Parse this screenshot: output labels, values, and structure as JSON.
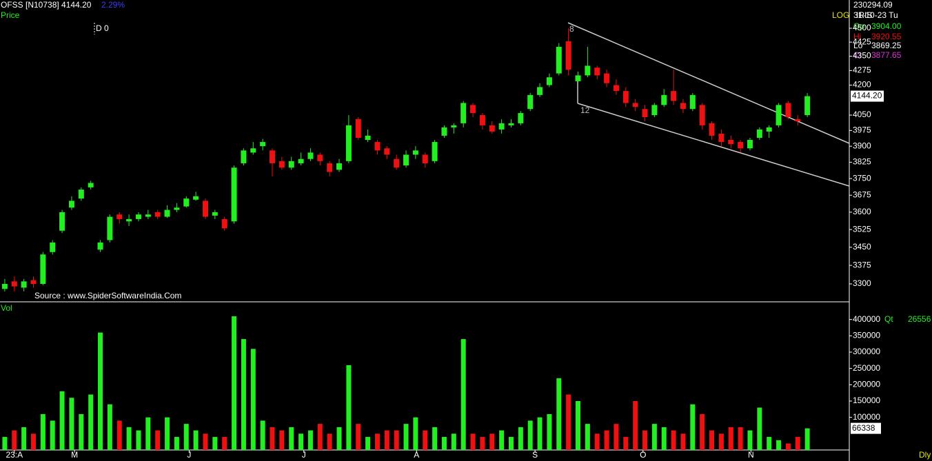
{
  "chart_data": {
    "type": "candlestick",
    "title": "OFSS [N10738] 4144.20",
    "change": "2.29%",
    "price_label": "Price",
    "volume_label": "Vol",
    "annotation": "D 0",
    "source": "Source : www.SpiderSoftwareIndia.Com",
    "scale_label": "LOG",
    "indicator": "IRIS",
    "trend_labels": [
      "8",
      "12"
    ],
    "info": {
      "volume_total": "230294.09",
      "date": "31-10-23 Tu",
      "rows": [
        {
          "label": "Op",
          "value": "3904.00"
        },
        {
          "label": "Hi",
          "value": "3920.55"
        },
        {
          "label": "Lo",
          "value": "3869.25"
        },
        {
          "label": "Cl",
          "value": "3877.65"
        }
      ]
    },
    "quantity_label": "Qt",
    "quantity": 26556,
    "period": "Dly",
    "last_price": {
      "value": 4144.2,
      "label": "4144.20"
    },
    "log_scale": true,
    "up_color": "#22ee22",
    "down_color": "#ee1111",
    "ohlc": [
      [
        3280,
        3320,
        3270,
        3300
      ],
      [
        3310,
        3330,
        3270,
        3290
      ],
      [
        3285,
        3320,
        3270,
        3310
      ],
      [
        3315,
        3330,
        3285,
        3300
      ],
      [
        3300,
        3430,
        3295,
        3420
      ],
      [
        3430,
        3480,
        3420,
        3470
      ],
      [
        3520,
        3610,
        3510,
        3600
      ],
      [
        3620,
        3670,
        3610,
        3650
      ],
      [
        3660,
        3710,
        3650,
        3700
      ],
      [
        3710,
        3740,
        3700,
        3730
      ],
      [
        3440,
        3480,
        3430,
        3470
      ],
      [
        3480,
        3590,
        3470,
        3580
      ],
      [
        3590,
        3600,
        3550,
        3570
      ],
      [
        3560,
        3590,
        3540,
        3570
      ],
      [
        3570,
        3600,
        3560,
        3590
      ],
      [
        3580,
        3610,
        3570,
        3590
      ],
      [
        3600,
        3610,
        3570,
        3580
      ],
      [
        3580,
        3630,
        3575,
        3610
      ],
      [
        3610,
        3640,
        3600,
        3620
      ],
      [
        3625,
        3670,
        3620,
        3660
      ],
      [
        3655,
        3690,
        3650,
        3670
      ],
      [
        3650,
        3660,
        3570,
        3580
      ],
      [
        3585,
        3610,
        3570,
        3600
      ],
      [
        3570,
        3580,
        3520,
        3530
      ],
      [
        3560,
        3810,
        3550,
        3800
      ],
      [
        3820,
        3890,
        3810,
        3880
      ],
      [
        3870,
        3920,
        3860,
        3890
      ],
      [
        3900,
        3935,
        3880,
        3920
      ],
      [
        3880,
        3890,
        3760,
        3820
      ],
      [
        3830,
        3850,
        3790,
        3800
      ],
      [
        3800,
        3850,
        3790,
        3830
      ],
      [
        3820,
        3870,
        3810,
        3840
      ],
      [
        3840,
        3890,
        3830,
        3870
      ],
      [
        3860,
        3870,
        3810,
        3830
      ],
      [
        3820,
        3830,
        3760,
        3780
      ],
      [
        3790,
        3840,
        3780,
        3820
      ],
      [
        3830,
        4050,
        3820,
        4000
      ],
      [
        4030,
        4040,
        3930,
        3940
      ],
      [
        3930,
        3980,
        3920,
        3950
      ],
      [
        3920,
        3930,
        3860,
        3880
      ],
      [
        3890,
        3900,
        3840,
        3860
      ],
      [
        3840,
        3860,
        3790,
        3800
      ],
      [
        3810,
        3880,
        3800,
        3860
      ],
      [
        3860,
        3900,
        3840,
        3880
      ],
      [
        3860,
        3870,
        3800,
        3820
      ],
      [
        3830,
        3930,
        3820,
        3920
      ],
      [
        3950,
        4000,
        3940,
        3990
      ],
      [
        3990,
        4010,
        3960,
        4000
      ],
      [
        4010,
        4120,
        3990,
        4110
      ],
      [
        4100,
        4110,
        4040,
        4060
      ],
      [
        4050,
        4060,
        3980,
        4000
      ],
      [
        4000,
        4020,
        3960,
        3970
      ],
      [
        3980,
        4030,
        3960,
        4010
      ],
      [
        4000,
        4030,
        3990,
        4010
      ],
      [
        4010,
        4070,
        4000,
        4060
      ],
      [
        4080,
        4160,
        4070,
        4150
      ],
      [
        4150,
        4210,
        4140,
        4190
      ],
      [
        4200,
        4260,
        4190,
        4240
      ],
      [
        4260,
        4420,
        4250,
        4400
      ],
      [
        4430,
        4500,
        4250,
        4280
      ],
      [
        4220,
        4270,
        4210,
        4250
      ],
      [
        4250,
        4400,
        4240,
        4300
      ],
      [
        4290,
        4300,
        4230,
        4250
      ],
      [
        4260,
        4280,
        4190,
        4210
      ],
      [
        4200,
        4230,
        4150,
        4170
      ],
      [
        4170,
        4190,
        4090,
        4110
      ],
      [
        4110,
        4130,
        4070,
        4090
      ],
      [
        4080,
        4100,
        4020,
        4040
      ],
      [
        4050,
        4110,
        4040,
        4100
      ],
      [
        4100,
        4180,
        4090,
        4150
      ],
      [
        4170,
        4280,
        4100,
        4120
      ],
      [
        4110,
        4130,
        4060,
        4080
      ],
      [
        4080,
        4160,
        4070,
        4150
      ],
      [
        4100,
        4110,
        3980,
        4000
      ],
      [
        4010,
        4020,
        3930,
        3950
      ],
      [
        3960,
        3980,
        3900,
        3920
      ],
      [
        3930,
        3950,
        3890,
        3910
      ],
      [
        3920,
        3930,
        3870,
        3890
      ],
      [
        3890,
        3940,
        3880,
        3930
      ],
      [
        3940,
        3990,
        3930,
        3980
      ],
      [
        3970,
        4000,
        3940,
        3990
      ],
      [
        4000,
        4110,
        3990,
        4100
      ],
      [
        4110,
        4120,
        4030,
        4040
      ],
      [
        4030,
        4050,
        4000,
        4020
      ],
      [
        4050,
        4160,
        4040,
        4144.2
      ]
    ],
    "volume": [
      40000,
      60000,
      70000,
      50000,
      110000,
      90000,
      180000,
      160000,
      110000,
      170000,
      360000,
      140000,
      90000,
      70000,
      60000,
      100000,
      60000,
      100000,
      40000,
      80000,
      60000,
      50000,
      40000,
      40000,
      410000,
      340000,
      310000,
      90000,
      70000,
      60000,
      70000,
      50000,
      60000,
      80000,
      50000,
      70000,
      260000,
      80000,
      40000,
      50000,
      60000,
      60000,
      80000,
      100000,
      60000,
      70000,
      40000,
      50000,
      340000,
      50000,
      40000,
      50000,
      60000,
      40000,
      70000,
      90000,
      100000,
      110000,
      220000,
      170000,
      150000,
      80000,
      50000,
      60000,
      80000,
      40000,
      150000,
      60000,
      80000,
      70000,
      60000,
      50000,
      140000,
      110000,
      60000,
      50000,
      70000,
      70000,
      60000,
      130000,
      40000,
      30000,
      20000,
      40000,
      66338
    ],
    "ylim": [
      3229,
      4657
    ],
    "yticks": [
      3300,
      3375,
      3450,
      3525,
      3600,
      3675,
      3750,
      3825,
      3900,
      3975,
      4050,
      4200,
      4275,
      4350,
      4425,
      4500
    ],
    "vlim": [
      0,
      450000
    ],
    "vticks": [
      100000,
      150000,
      200000,
      250000,
      300000,
      350000,
      400000
    ],
    "xlim": [
      -0.5,
      85
    ],
    "xticks": [
      {
        "value": 1,
        "label": "23:A"
      },
      {
        "value": 7.3,
        "label": "M"
      },
      {
        "value": 19.3,
        "label": "J"
      },
      {
        "value": 31.3,
        "label": "J"
      },
      {
        "value": 43.1,
        "label": "A"
      },
      {
        "value": 55.5,
        "label": "S"
      },
      {
        "value": 66.8,
        "label": "O"
      },
      {
        "value": 78.1,
        "label": "N"
      }
    ]
  }
}
